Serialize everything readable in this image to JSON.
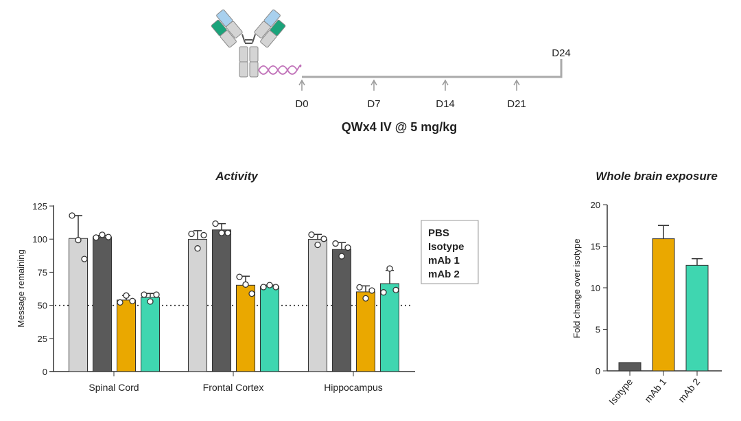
{
  "schematic": {
    "timepoints": [
      "D0",
      "D7",
      "D14",
      "D21"
    ],
    "end_label": "D24",
    "dosing": "QWx4 IV @ 5 mg/kg",
    "icon": "antibody-oligo-conjugate-icon"
  },
  "chart_data": [
    {
      "type": "bar",
      "title": "Activity",
      "ylabel": "Message remaining",
      "xlabel": "",
      "ylim": [
        0,
        125
      ],
      "yticks": [
        0,
        25,
        50,
        75,
        100,
        125
      ],
      "reference_line": 50,
      "categories": [
        "Spinal Cord",
        "Frontal Cortex",
        "Hippocampus"
      ],
      "legend": {
        "placement": "right",
        "entries": [
          "PBS",
          "Isotype",
          "mAb 1",
          "mAb 2"
        ]
      },
      "series": [
        {
          "name": "PBS",
          "color": "#d4d4d4",
          "values": [
            100.5,
            99.8,
            99.8
          ],
          "error_upper": [
            117.8,
            106.4,
            103.6
          ],
          "points": [
            [
              117.8,
              99.3,
              85
            ],
            [
              104,
              93,
              103
            ],
            [
              103.4,
              95.7,
              100.2
            ]
          ]
        },
        {
          "name": "Isotype",
          "color": "#5a5a5a",
          "values": [
            101.6,
            107,
            92.2
          ],
          "error_upper": [
            102.8,
            111.7,
            97.4
          ],
          "points": [
            [
              101.2,
              103.3,
              101.6
            ],
            [
              111.7,
              104.7,
              104.7
            ],
            [
              96.7,
              87.1,
              93.6
            ]
          ]
        },
        {
          "name": "mAb 1",
          "color": "#eaa800",
          "values": [
            54,
            65.2,
            60.2
          ],
          "error_upper": [
            57.4,
            72,
            64.7
          ],
          "points": [
            [
              52.2,
              57.4,
              53.3
            ],
            [
              71.5,
              65.7,
              58.8
            ],
            [
              63.6,
              55.3,
              61.2
            ]
          ]
        },
        {
          "name": "mAb 2",
          "color": "#3fd6b0",
          "values": [
            56,
            64.3,
            66.4
          ],
          "error_upper": [
            59,
            65.3,
            76.4
          ],
          "points": [
            [
              58.1,
              52.9,
              58.1
            ],
            [
              63.8,
              65.3,
              63.8
            ],
            [
              59.8,
              77.8,
              61.6
            ]
          ]
        }
      ]
    },
    {
      "type": "bar",
      "title": "Whole brain exposure",
      "ylabel": "Fold change over isotype",
      "xlabel": "",
      "ylim": [
        0,
        20
      ],
      "yticks": [
        0,
        5,
        10,
        15,
        20
      ],
      "categories": [
        "Isotype",
        "mAb 1",
        "mAb 2"
      ],
      "values": [
        1.0,
        15.9,
        12.7
      ],
      "error_upper": [
        1.0,
        17.5,
        13.5
      ],
      "colors": [
        "#5a5a5a",
        "#eaa800",
        "#3fd6b0"
      ]
    }
  ]
}
